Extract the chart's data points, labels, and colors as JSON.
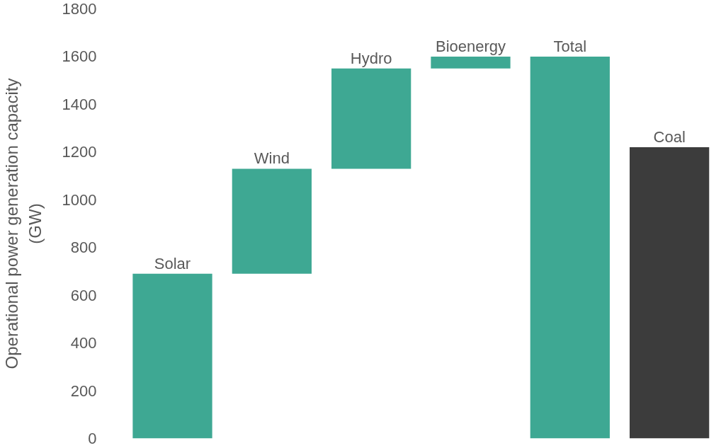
{
  "chart_data": {
    "type": "bar",
    "ylabel": "Operational power generation capacity (GW)",
    "categories": [
      "Solar",
      "Wind",
      "Hydro",
      "Bioenergy",
      "Total",
      "Coal"
    ],
    "values": [
      690,
      440,
      420,
      50,
      1600,
      1220
    ],
    "base": [
      0,
      690,
      1130,
      1550,
      0,
      0
    ],
    "colors": [
      "#3ea893",
      "#3ea893",
      "#3ea893",
      "#3ea893",
      "#3ea893",
      "#3c3c3c"
    ],
    "ylim": [
      0,
      1800
    ],
    "yticks": [
      0,
      200,
      400,
      600,
      800,
      1000,
      1200,
      1400,
      1600,
      1800
    ],
    "grid": false
  }
}
